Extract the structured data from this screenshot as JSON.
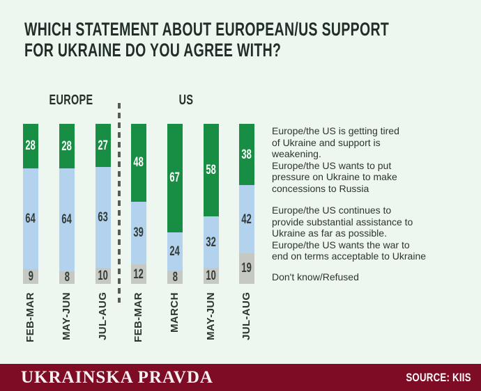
{
  "title": {
    "line1": "WHICH STATEMENT ABOUT EUROPEAN/US SUPPORT",
    "line2": "FOR UKRAINE DO YOU AGREE WITH?"
  },
  "chart_data": {
    "type": "bar",
    "stacked": true,
    "unit": "percent",
    "title": "Which statement about European/US support for Ukraine do you agree with?",
    "colors": {
      "green": "#178e44",
      "blue": "#b2d2ee",
      "gray": "#c6c8c4"
    },
    "groups": [
      {
        "label": "EUROPE",
        "categories": [
          "FEB-MAR",
          "MAY-JUN",
          "JUL-AUG"
        ],
        "series": [
          {
            "name": "tired-pressure",
            "color_key": "green",
            "values": [
              28,
              28,
              27
            ]
          },
          {
            "name": "continues-assistance",
            "color_key": "blue",
            "values": [
              64,
              64,
              63
            ]
          },
          {
            "name": "dont-know-refused",
            "color_key": "gray",
            "values": [
              9,
              8,
              10
            ]
          }
        ]
      },
      {
        "label": "US",
        "categories": [
          "FEB-MAR",
          "MARCH",
          "MAY-JUN",
          "JUL-AUG"
        ],
        "series": [
          {
            "name": "tired-pressure",
            "color_key": "green",
            "values": [
              48,
              67,
              58,
              38
            ]
          },
          {
            "name": "continues-assistance",
            "color_key": "blue",
            "values": [
              39,
              24,
              32,
              42
            ]
          },
          {
            "name": "dont-know-refused",
            "color_key": "gray",
            "values": [
              12,
              8,
              10,
              19
            ]
          }
        ]
      }
    ],
    "legend": [
      {
        "color_key": "green",
        "text": "Europe/the US is getting tired\nof Ukraine and support is\nweakening.\nEurope/the US wants to put\npressure on Ukraine to make\nconcessions to Russia"
      },
      {
        "color_key": "blue",
        "text": "Europe/the US continues to\nprovide substantial assistance to\nUkraine as far as possible.\nEurope/the US wants the war to\nend on terms acceptable to Ukraine"
      },
      {
        "color_key": "gray",
        "text": "Don't know/Refused"
      }
    ],
    "layout_hint": {
      "grid": false,
      "legend_position": "right",
      "bar_orientation": "vertical"
    }
  },
  "footer": {
    "brand": "UKRAINSKA PRAVDA",
    "source": "SOURCE: KIIS"
  }
}
